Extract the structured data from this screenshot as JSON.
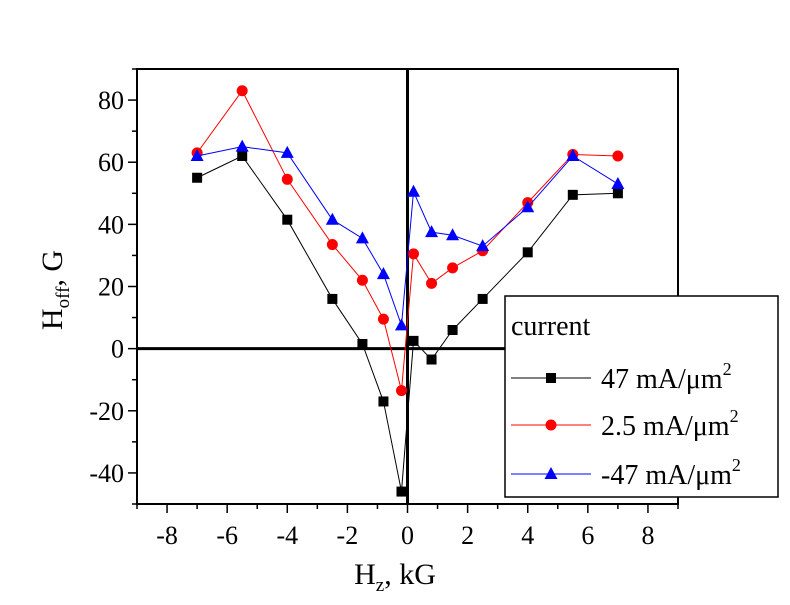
{
  "chart_data": {
    "type": "line",
    "xlabel": {
      "main": "H",
      "sub": "z",
      "rest": ", kG"
    },
    "ylabel": {
      "main": "H",
      "sub": "off",
      "rest": ", G"
    },
    "xlim": [
      -9,
      9
    ],
    "ylim": [
      -50,
      90
    ],
    "xticks": [
      -8,
      -6,
      -4,
      -2,
      0,
      2,
      4,
      6,
      8
    ],
    "yticks": [
      -40,
      -20,
      0,
      20,
      40,
      60,
      80
    ],
    "grid": false,
    "zero_lines": true,
    "legend": {
      "title": "current",
      "placement": "bottom-right"
    },
    "series": [
      {
        "name": "47 mA/μm",
        "sup": "2",
        "color": "#000000",
        "marker": "square",
        "x": [
          -7,
          -5.5,
          -4,
          -2.5,
          -1.5,
          -0.8,
          -0.2,
          0.2,
          0.8,
          1.5,
          2.5,
          4,
          5.5,
          7
        ],
        "y": [
          55,
          62,
          41.5,
          16,
          1.5,
          -17,
          -46,
          2.5,
          -3.5,
          6,
          16,
          31,
          49.5,
          50
        ]
      },
      {
        "name": "2.5 mA/μm",
        "sup": "2",
        "color": "#ff0000",
        "marker": "circle",
        "x": [
          -7,
          -5.5,
          -4,
          -2.5,
          -1.5,
          -0.8,
          -0.2,
          0.2,
          0.8,
          1.5,
          2.5,
          4,
          5.5,
          7
        ],
        "y": [
          63,
          83,
          54.5,
          33.5,
          22,
          9.5,
          -13.5,
          30.5,
          21,
          26,
          31.5,
          47,
          62.5,
          62
        ]
      },
      {
        "name": "-47 mA/μm",
        "sup": "2",
        "color": "#0000ff",
        "marker": "triangle",
        "x": [
          -7,
          -5.5,
          -4,
          -2.5,
          -1.5,
          -0.8,
          -0.2,
          0.2,
          0.8,
          1.5,
          2.5,
          4,
          5.5,
          7
        ],
        "y": [
          62,
          65,
          63,
          41.5,
          35.5,
          24,
          7.5,
          50.5,
          37.5,
          36.5,
          33,
          45.5,
          62,
          53
        ]
      }
    ]
  }
}
